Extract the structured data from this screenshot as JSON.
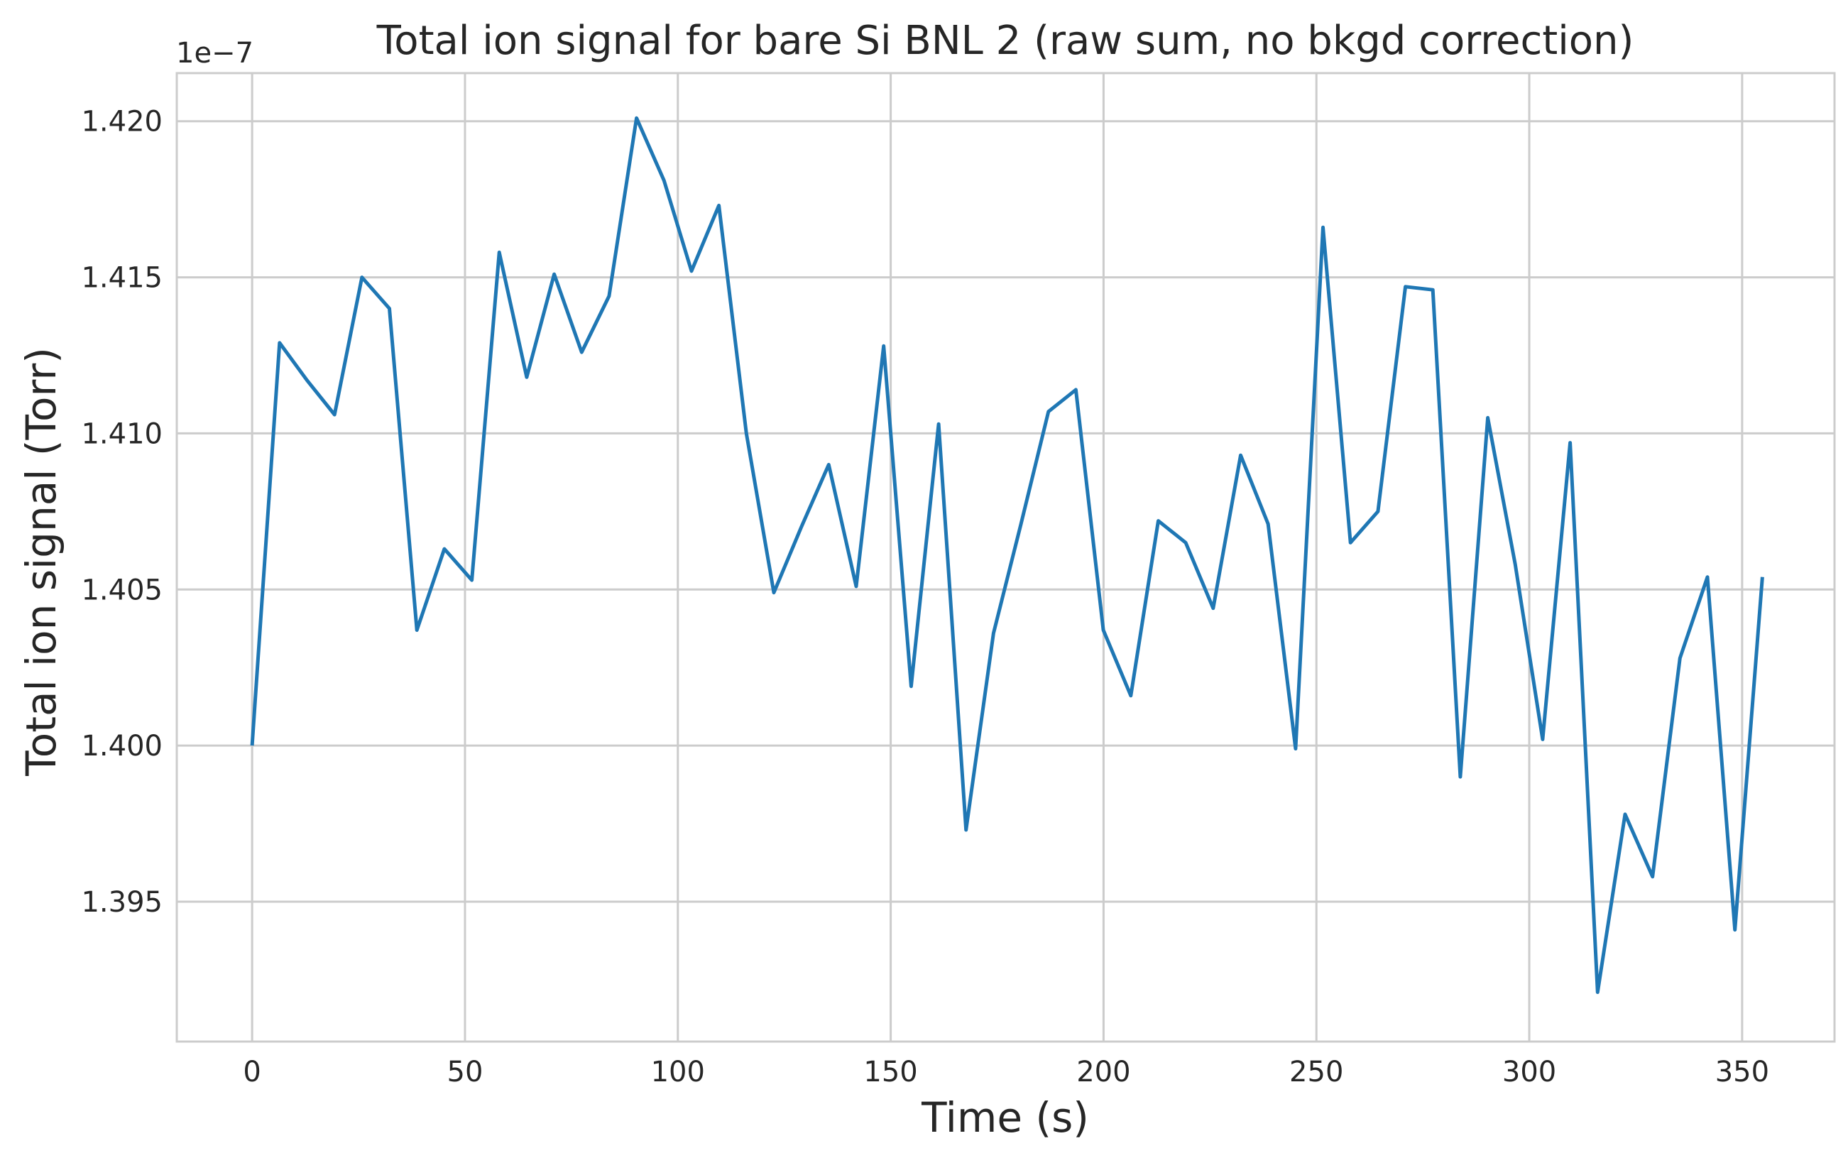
{
  "chart_data": {
    "type": "line",
    "title": "Total ion signal for bare Si BNL 2 (raw sum, no bkgd correction)",
    "xlabel": "Time (s)",
    "ylabel": "Total ion signal (Torr)",
    "y_offset_label": "1e−7",
    "y_scale_factor": 1e-07,
    "xlim": [
      -17.7,
      371.7
    ],
    "ylim": [
      1.39052,
      1.42154
    ],
    "x_ticks": [
      0,
      50,
      100,
      150,
      200,
      250,
      300,
      350
    ],
    "x_tick_labels": [
      "0",
      "50",
      "100",
      "150",
      "200",
      "250",
      "300",
      "350"
    ],
    "y_ticks": [
      1.395,
      1.4,
      1.405,
      1.41,
      1.415,
      1.42
    ],
    "y_tick_labels": [
      "1.395",
      "1.400",
      "1.405",
      "1.410",
      "1.415",
      "1.420"
    ],
    "grid": true,
    "series": [
      {
        "color": "#1f77b4",
        "x": [
          0,
          6.45,
          12.9,
          19.35,
          25.8,
          32.25,
          38.7,
          45.15,
          51.6,
          58.05,
          64.5,
          70.95,
          77.4,
          83.85,
          90.3,
          96.75,
          103.2,
          109.65,
          116.1,
          122.55,
          129.0,
          135.45,
          141.9,
          148.35,
          154.8,
          161.25,
          167.7,
          174.15,
          180.6,
          187.05,
          193.5,
          199.95,
          206.4,
          212.85,
          219.3,
          225.75,
          232.2,
          238.65,
          245.1,
          251.55,
          258.0,
          264.45,
          270.9,
          277.35,
          283.8,
          290.25,
          296.7,
          303.15,
          309.6,
          316.05,
          322.5,
          328.95,
          335.4,
          341.85,
          348.3,
          354.75
        ],
        "y": [
          1.4,
          1.4129,
          1.4117,
          1.4106,
          1.415,
          1.414,
          1.4037,
          1.4063,
          1.4053,
          1.4158,
          1.4118,
          1.4151,
          1.4126,
          1.4144,
          1.4201,
          1.4181,
          1.4152,
          1.4173,
          1.41,
          1.4049,
          1.407,
          1.409,
          1.4051,
          1.4128,
          1.4019,
          1.4103,
          1.3973,
          1.4036,
          1.4071,
          1.4107,
          1.4114,
          1.4037,
          1.4016,
          1.4072,
          1.4065,
          1.4044,
          1.4093,
          1.4071,
          1.3999,
          1.4166,
          1.4065,
          1.4075,
          1.4147,
          1.4146,
          1.399,
          1.4105,
          1.4058,
          1.4002,
          1.4097,
          1.3921,
          1.3978,
          1.3958,
          1.4028,
          1.4054,
          1.3941,
          1.4054
        ]
      }
    ]
  }
}
